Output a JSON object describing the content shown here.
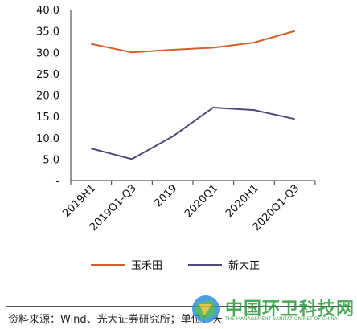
{
  "chart_data": {
    "type": "line",
    "categories": [
      "2019H1",
      "2019Q1-Q3",
      "2019",
      "2020Q1",
      "2020H1",
      "2020Q1-Q3"
    ],
    "y_tick_labels": [
      "40.0",
      "35.0",
      "30.0",
      "25.0",
      "20.0",
      "15.0",
      "10.0",
      "5.0",
      "-"
    ],
    "ylim": [
      0,
      40
    ],
    "grid": false,
    "legend_position": "bottom",
    "series": [
      {
        "name": "玉禾田",
        "color": "#d2612b",
        "values": [
          32.0,
          30.0,
          30.6,
          31.1,
          32.3,
          35.0
        ]
      },
      {
        "name": "新大正",
        "color": "#4e4a7f",
        "values": [
          7.5,
          5.0,
          10.3,
          17.1,
          16.5,
          14.4
        ]
      }
    ]
  },
  "source": "资料来源：Wind、光大证券研究所；单位：天",
  "watermark": {
    "text": "中国环卫科技网",
    "subtext": "THE MANAGEMENT SANITATION NET OF CHINA"
  }
}
